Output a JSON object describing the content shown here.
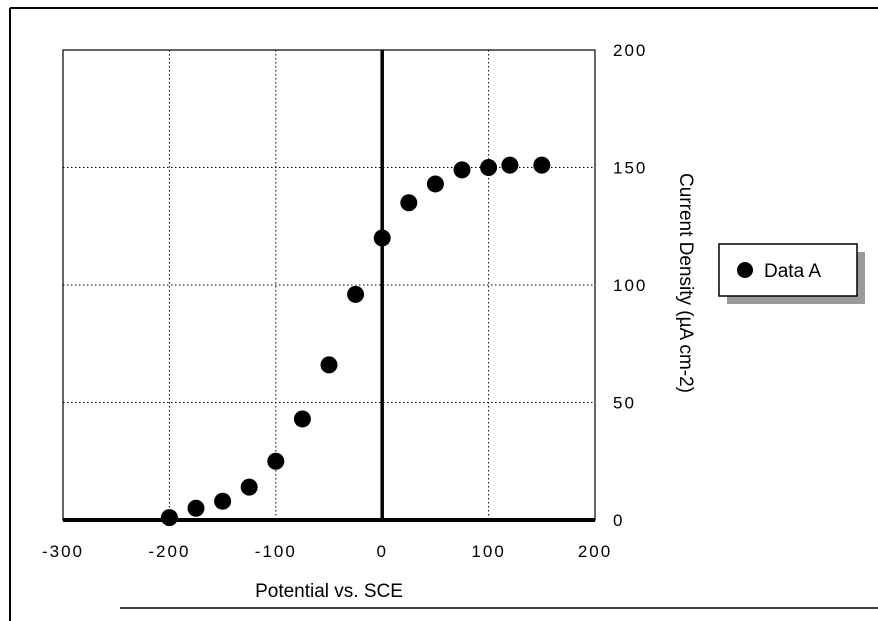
{
  "chart_data": {
    "type": "scatter",
    "xlabel": "Potential  vs. SCE",
    "ylabel": "Current Density (µA cm-2)",
    "xlim": [
      -300,
      200
    ],
    "ylim": [
      0,
      200
    ],
    "x_ticks": [
      "-300",
      "-200",
      "-100",
      "0",
      "100",
      "200"
    ],
    "y_ticks": [
      "0",
      "50",
      "100",
      "150",
      "200"
    ],
    "x_tick_values": [
      -300,
      -200,
      -100,
      0,
      100,
      200
    ],
    "y_tick_values": [
      0,
      50,
      100,
      150,
      200
    ],
    "grid": true,
    "legend_position": "right",
    "series": [
      {
        "name": "Data A",
        "color": "#000000",
        "marker": "circle",
        "x": [
          -200,
          -175,
          -150,
          -125,
          -100,
          -75,
          -50,
          -25,
          0,
          25,
          50,
          75,
          100,
          120,
          150
        ],
        "y": [
          1,
          5,
          8,
          14,
          25,
          43,
          66,
          96,
          120,
          135,
          143,
          149,
          150,
          151,
          151
        ]
      }
    ]
  }
}
